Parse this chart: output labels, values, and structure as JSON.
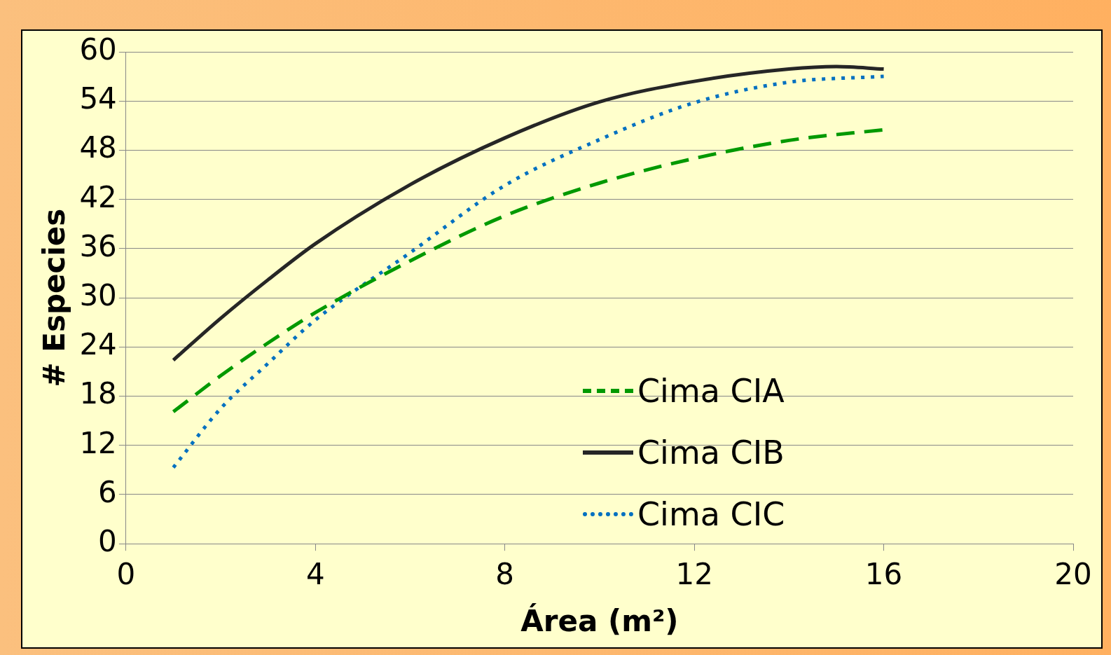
{
  "chart_data": {
    "type": "line",
    "xlabel": "Área (m²)",
    "ylabel": "# Especies",
    "xlim": [
      0,
      20
    ],
    "xticks": [
      0,
      4,
      8,
      12,
      16,
      20
    ],
    "ylim": [
      0,
      60
    ],
    "yticks": [
      0,
      6,
      12,
      18,
      24,
      30,
      36,
      42,
      48,
      54,
      60
    ],
    "grid": "y",
    "legend": "bottom",
    "marker": "none",
    "series": [
      {
        "name": "Cima CIA",
        "color": "#009900",
        "line_style": "dashed",
        "x": [
          1,
          2,
          3,
          4,
          6,
          8,
          10,
          12,
          14,
          16
        ],
        "values": [
          16.1,
          20.5,
          24.5,
          28.2,
          34.5,
          40,
          44,
          47,
          49.2,
          50.5
        ]
      },
      {
        "name": "Cima CIB",
        "color": "#262626",
        "line_style": "solid",
        "x": [
          1,
          2,
          3,
          4,
          6,
          8,
          10,
          12,
          14,
          15,
          16
        ],
        "values": [
          22.4,
          27.5,
          32.2,
          36.6,
          43.8,
          49.5,
          53.9,
          56.4,
          57.9,
          58.2,
          57.9
        ]
      },
      {
        "name": "Cima CIC",
        "color": "#0070c0",
        "line_style": "dotted",
        "x": [
          1,
          2,
          3,
          4,
          6,
          8,
          10,
          12,
          14,
          16
        ],
        "values": [
          9.3,
          16.5,
          22,
          27.3,
          35.5,
          43.7,
          49.3,
          53.8,
          56.3,
          57
        ]
      }
    ]
  }
}
